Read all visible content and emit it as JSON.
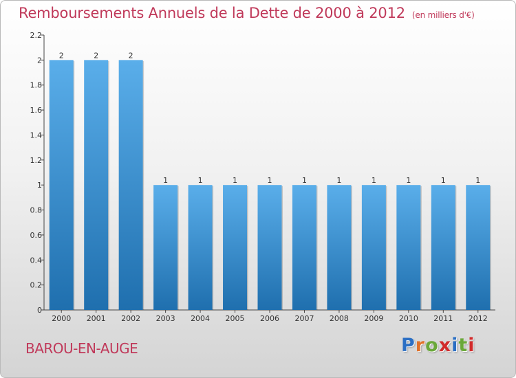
{
  "header": {
    "title": "Remboursements Annuels de la Dette de 2000 à 2012",
    "unit": "(en milliers d'€)"
  },
  "footer": {
    "commune": "BAROU-EN-AUGE",
    "logo": {
      "text": "Proxiti",
      "letter_colors": [
        "#2b6fc4",
        "#e0712a",
        "#6aa83a",
        "#d12a2a",
        "#2b6fc4",
        "#6aa83a",
        "#d12a2a"
      ]
    }
  },
  "colors": {
    "title": "#c0395a",
    "bar_light": "#5aaeea",
    "bar_dark": "#1f6fae"
  },
  "chart_data": {
    "type": "bar",
    "title": "Remboursements Annuels de la Dette de 2000 à 2012",
    "categories": [
      "2000",
      "2001",
      "2002",
      "2003",
      "2004",
      "2005",
      "2006",
      "2007",
      "2008",
      "2009",
      "2010",
      "2011",
      "2012"
    ],
    "values": [
      2,
      2,
      2,
      1,
      1,
      1,
      1,
      1,
      1,
      1,
      1,
      1,
      1
    ],
    "data_labels": [
      "2",
      "2",
      "2",
      "1",
      "1",
      "1",
      "1",
      "1",
      "1",
      "1",
      "1",
      "1",
      "1"
    ],
    "ylim": [
      0,
      2.2
    ],
    "yticks": [
      0,
      0.2,
      0.4,
      0.6,
      0.8,
      1,
      1.2,
      1.4,
      1.6,
      1.8,
      2,
      2.2
    ],
    "ytick_labels": [
      "0",
      "0.2",
      "0.4",
      "0.6",
      "0.8",
      "1",
      "1.2",
      "1.4",
      "1.6",
      "1.8",
      "2",
      "2.2"
    ],
    "grid": false,
    "legend": "none"
  }
}
